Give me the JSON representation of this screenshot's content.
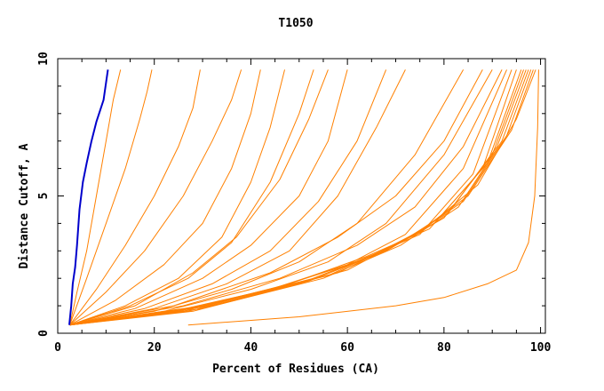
{
  "chart_data": {
    "type": "line",
    "title": "T1050",
    "xlabel": "Percent of Residues (CA)",
    "ylabel": "Distance Cutoff, A",
    "xlim": [
      0,
      101
    ],
    "ylim": [
      0,
      10
    ],
    "x_ticks": [
      0,
      20,
      40,
      60,
      80,
      100
    ],
    "y_ticks": [
      0,
      5,
      10
    ],
    "grid": false,
    "colors": {
      "highlight": "#0000cc",
      "others": "#ff8000"
    },
    "series": [
      {
        "highlight": true,
        "values": [
          [
            2.4,
            0.3
          ],
          [
            2.8,
            1.0
          ],
          [
            3.1,
            1.8
          ],
          [
            3.6,
            2.4
          ],
          [
            4.0,
            3.2
          ],
          [
            4.5,
            4.5
          ],
          [
            5.2,
            5.5
          ],
          [
            6.0,
            6.2
          ],
          [
            7.0,
            7.0
          ],
          [
            8.0,
            7.7
          ],
          [
            9.5,
            8.5
          ],
          [
            10.4,
            9.6
          ]
        ]
      },
      {
        "values": [
          [
            2.5,
            0.3
          ],
          [
            4,
            1.5
          ],
          [
            6,
            3
          ],
          [
            8,
            5
          ],
          [
            10,
            7
          ],
          [
            11.5,
            8.5
          ],
          [
            13,
            9.6
          ]
        ]
      },
      {
        "values": [
          [
            2.5,
            0.3
          ],
          [
            6,
            2
          ],
          [
            10,
            4
          ],
          [
            14,
            6
          ],
          [
            17,
            7.8
          ],
          [
            18.5,
            8.8
          ],
          [
            19.5,
            9.6
          ]
        ]
      },
      {
        "values": [
          [
            2.5,
            0.3
          ],
          [
            8,
            1.6
          ],
          [
            14,
            3.2
          ],
          [
            20,
            5
          ],
          [
            25,
            6.8
          ],
          [
            28,
            8.2
          ],
          [
            29.5,
            9.6
          ]
        ]
      },
      {
        "values": [
          [
            2.5,
            0.3
          ],
          [
            10,
            1.5
          ],
          [
            18,
            3
          ],
          [
            26,
            5
          ],
          [
            32,
            7
          ],
          [
            36,
            8.5
          ],
          [
            38,
            9.6
          ]
        ]
      },
      {
        "values": [
          [
            2.5,
            0.3
          ],
          [
            12,
            1.2
          ],
          [
            22,
            2.5
          ],
          [
            30,
            4
          ],
          [
            36,
            6
          ],
          [
            40,
            8
          ],
          [
            42,
            9.6
          ]
        ]
      },
      {
        "values": [
          [
            2.5,
            0.3
          ],
          [
            14,
            1
          ],
          [
            25,
            2
          ],
          [
            34,
            3.5
          ],
          [
            40,
            5.5
          ],
          [
            44,
            7.5
          ],
          [
            47,
            9.6
          ]
        ]
      },
      {
        "values": [
          [
            2.5,
            0.3
          ],
          [
            15,
            1
          ],
          [
            27,
            2
          ],
          [
            36,
            3.3
          ],
          [
            44,
            5.5
          ],
          [
            50,
            8
          ],
          [
            53,
            9.6
          ]
        ]
      },
      {
        "values": [
          [
            2.5,
            0.3
          ],
          [
            16,
            1
          ],
          [
            28,
            2.2
          ],
          [
            37,
            3.5
          ],
          [
            46,
            5.6
          ],
          [
            52,
            7.8
          ],
          [
            56,
            9.6
          ]
        ]
      },
      {
        "values": [
          [
            2.5,
            0.3
          ],
          [
            16,
            0.9
          ],
          [
            30,
            2
          ],
          [
            40,
            3.2
          ],
          [
            50,
            5
          ],
          [
            56,
            7
          ],
          [
            60,
            9.6
          ]
        ]
      },
      {
        "values": [
          [
            2.5,
            0.3
          ],
          [
            18,
            0.9
          ],
          [
            32,
            1.8
          ],
          [
            44,
            3
          ],
          [
            54,
            4.8
          ],
          [
            62,
            7
          ],
          [
            68,
            9.6
          ]
        ]
      },
      {
        "values": [
          [
            2.5,
            0.3
          ],
          [
            20,
            0.9
          ],
          [
            35,
            1.8
          ],
          [
            48,
            3
          ],
          [
            58,
            5
          ],
          [
            66,
            7.5
          ],
          [
            72,
            9.6
          ]
        ]
      },
      {
        "values": [
          [
            2.5,
            0.3
          ],
          [
            20,
            0.8
          ],
          [
            36,
            1.6
          ],
          [
            50,
            2.6
          ],
          [
            62,
            4
          ],
          [
            74,
            6.5
          ],
          [
            84,
            9.6
          ]
        ]
      },
      {
        "values": [
          [
            2.5,
            0.3
          ],
          [
            22,
            0.8
          ],
          [
            40,
            1.6
          ],
          [
            56,
            2.6
          ],
          [
            68,
            4
          ],
          [
            80,
            6.5
          ],
          [
            90,
            9.6
          ]
        ]
      },
      {
        "values": [
          [
            2.5,
            0.3
          ],
          [
            24,
            0.8
          ],
          [
            44,
            1.6
          ],
          [
            60,
            2.5
          ],
          [
            72,
            3.6
          ],
          [
            84,
            6
          ],
          [
            93,
            9.6
          ]
        ]
      },
      {
        "values": [
          [
            2.5,
            0.3
          ],
          [
            25,
            0.8
          ],
          [
            46,
            1.7
          ],
          [
            62,
            2.6
          ],
          [
            75,
            3.6
          ],
          [
            86,
            5.8
          ],
          [
            94,
            9.6
          ]
        ]
      },
      {
        "values": [
          [
            2.5,
            0.3
          ],
          [
            26,
            0.8
          ],
          [
            48,
            1.8
          ],
          [
            64,
            2.8
          ],
          [
            77,
            3.8
          ],
          [
            88,
            6
          ],
          [
            95,
            9.6
          ]
        ]
      },
      {
        "values": [
          [
            2.5,
            0.3
          ],
          [
            27,
            0.8
          ],
          [
            50,
            1.8
          ],
          [
            66,
            2.9
          ],
          [
            78,
            4
          ],
          [
            89,
            6.2
          ],
          [
            96,
            9.6
          ]
        ]
      },
      {
        "values": [
          [
            2.5,
            0.3
          ],
          [
            28,
            0.8
          ],
          [
            52,
            1.9
          ],
          [
            68,
            3
          ],
          [
            80,
            4.2
          ],
          [
            90,
            6.5
          ],
          [
            96.5,
            9.6
          ]
        ]
      },
      {
        "values": [
          [
            2.5,
            0.3
          ],
          [
            28,
            0.9
          ],
          [
            53,
            2
          ],
          [
            69,
            3.1
          ],
          [
            81,
            4.4
          ],
          [
            91,
            6.8
          ],
          [
            97,
            9.6
          ]
        ]
      },
      {
        "values": [
          [
            2.5,
            0.3
          ],
          [
            30,
            0.9
          ],
          [
            55,
            2
          ],
          [
            71,
            3.2
          ],
          [
            83,
            4.6
          ],
          [
            92,
            7
          ],
          [
            97.5,
            9.6
          ]
        ]
      },
      {
        "values": [
          [
            2.5,
            0.3
          ],
          [
            30,
            1
          ],
          [
            56,
            2.1
          ],
          [
            72,
            3.4
          ],
          [
            84,
            4.8
          ],
          [
            93,
            7.2
          ],
          [
            98,
            9.6
          ]
        ]
      },
      {
        "values": [
          [
            2.5,
            0.3
          ],
          [
            31,
            1
          ],
          [
            58,
            2.2
          ],
          [
            74,
            3.6
          ],
          [
            85,
            5
          ],
          [
            94,
            7.4
          ],
          [
            98.5,
            9.6
          ]
        ]
      },
      {
        "values": [
          [
            2.5,
            0.3
          ],
          [
            32,
            1
          ],
          [
            60,
            2.3
          ],
          [
            76,
            3.8
          ],
          [
            87,
            5.4
          ],
          [
            95,
            7.8
          ],
          [
            99,
            9.6
          ]
        ]
      },
      {
        "values": [
          [
            2.5,
            0.3
          ],
          [
            26,
            1
          ],
          [
            46,
            2
          ],
          [
            62,
            3.2
          ],
          [
            74,
            4.6
          ],
          [
            84,
            6.8
          ],
          [
            92,
            9.6
          ]
        ]
      },
      {
        "values": [
          [
            2.5,
            0.3
          ],
          [
            24,
            1
          ],
          [
            44,
            2.2
          ],
          [
            58,
            3.5
          ],
          [
            70,
            5
          ],
          [
            80,
            7
          ],
          [
            88,
            9.6
          ]
        ]
      },
      {
        "values": [
          [
            27,
            0.3
          ],
          [
            50,
            0.6
          ],
          [
            70,
            1
          ],
          [
            80,
            1.3
          ],
          [
            89,
            1.8
          ],
          [
            95,
            2.3
          ],
          [
            97.5,
            3.3
          ],
          [
            98.8,
            5
          ],
          [
            99.4,
            7.5
          ],
          [
            99.6,
            9.6
          ]
        ]
      }
    ]
  }
}
